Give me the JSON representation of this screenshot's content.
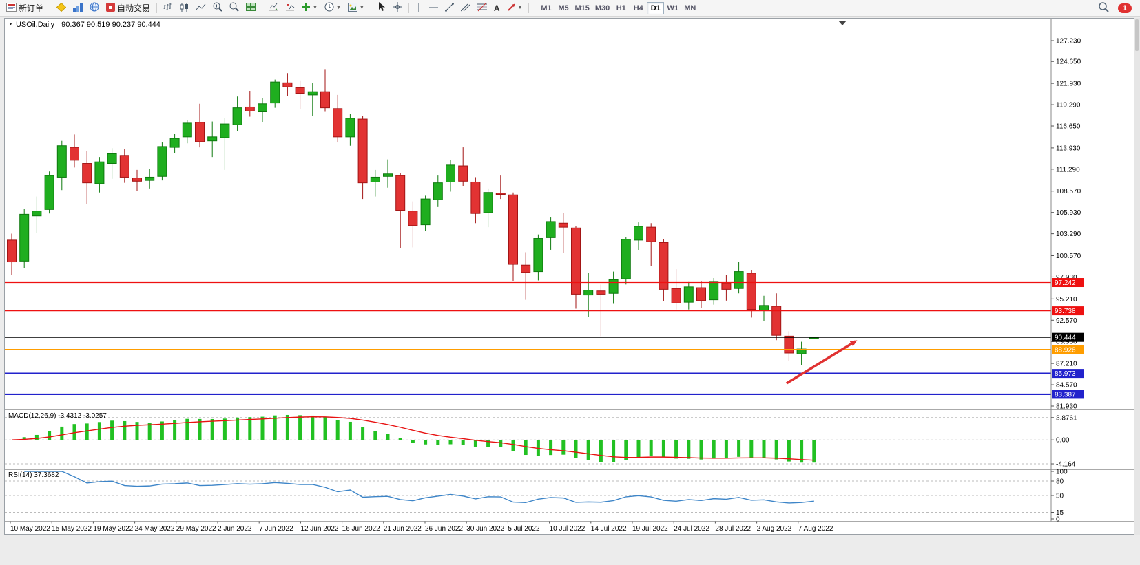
{
  "toolbar": {
    "new_order_label": "新订单",
    "autotrading_label": "自动交易",
    "timeframes": [
      "M1",
      "M5",
      "M15",
      "M30",
      "H1",
      "H4",
      "D1",
      "W1",
      "MN"
    ],
    "active_timeframe": "D1",
    "notification_count": "1",
    "text_tool_label": "A"
  },
  "chart_data": {
    "type": "candlestick",
    "symbol": "USOil",
    "timeframe": "Daily",
    "title": {
      "symbol_period": "USOil,Daily",
      "ohlc": "90.367 90.519 90.237 90.444"
    },
    "quote": {
      "open": 90.367,
      "high": 90.519,
      "low": 90.237,
      "close": 90.444
    },
    "ylim": [
      81.93,
      127.23
    ],
    "y_tick_labels": [
      "127.230",
      "124.650",
      "121.930",
      "119.290",
      "116.650",
      "113.930",
      "111.290",
      "108.570",
      "105.930",
      "103.290",
      "100.570",
      "97.930",
      "95.210",
      "92.570",
      "89.930",
      "87.210",
      "84.570",
      "81.930"
    ],
    "x_tick_labels": [
      "10 May 2022",
      "15 May 2022",
      "19 May 2022",
      "24 May 2022",
      "29 May 2022",
      "2 Jun 2022",
      "7 Jun 2022",
      "12 Jun 2022",
      "16 Jun 2022",
      "21 Jun 2022",
      "26 Jun 2022",
      "30 Jun 2022",
      "5 Jul 2022",
      "10 Jul 2022",
      "14 Jul 2022",
      "19 Jul 2022",
      "24 Jul 2022",
      "28 Jul 2022",
      "2 Aug 2022",
      "7 Aug 2022"
    ],
    "candles": [
      [
        102.5,
        103.3,
        98.2,
        99.8
      ],
      [
        99.9,
        106.4,
        99.0,
        105.7
      ],
      [
        105.5,
        107.9,
        103.4,
        106.1
      ],
      [
        106.3,
        111.0,
        105.8,
        110.5
      ],
      [
        110.3,
        114.8,
        108.7,
        114.2
      ],
      [
        114.0,
        115.6,
        111.5,
        112.4
      ],
      [
        112.0,
        113.5,
        107.0,
        109.6
      ],
      [
        109.5,
        112.8,
        108.4,
        112.2
      ],
      [
        112.0,
        113.9,
        110.1,
        113.2
      ],
      [
        113.0,
        113.8,
        109.6,
        110.3
      ],
      [
        110.2,
        111.2,
        108.6,
        109.8
      ],
      [
        109.9,
        111.3,
        108.9,
        110.3
      ],
      [
        110.4,
        114.6,
        109.9,
        114.1
      ],
      [
        114.0,
        115.7,
        113.3,
        115.1
      ],
      [
        115.3,
        117.4,
        114.5,
        117.0
      ],
      [
        117.1,
        119.4,
        114.0,
        114.7
      ],
      [
        114.8,
        117.2,
        112.8,
        115.3
      ],
      [
        115.2,
        117.6,
        111.2,
        116.9
      ],
      [
        116.8,
        120.3,
        116.0,
        118.9
      ],
      [
        119.0,
        121.0,
        117.8,
        118.5
      ],
      [
        118.4,
        120.1,
        117.1,
        119.4
      ],
      [
        119.5,
        122.4,
        118.9,
        122.1
      ],
      [
        122.0,
        123.2,
        120.4,
        121.5
      ],
      [
        121.4,
        122.3,
        118.7,
        120.7
      ],
      [
        120.5,
        122.0,
        117.9,
        120.9
      ],
      [
        120.9,
        123.7,
        118.4,
        118.9
      ],
      [
        118.8,
        120.5,
        114.6,
        115.3
      ],
      [
        115.3,
        118.1,
        114.2,
        117.6
      ],
      [
        117.5,
        117.9,
        107.6,
        109.6
      ],
      [
        109.7,
        111.2,
        107.9,
        110.3
      ],
      [
        110.4,
        112.5,
        109.0,
        110.7
      ],
      [
        110.5,
        110.8,
        101.5,
        106.2
      ],
      [
        106.1,
        107.3,
        101.6,
        104.3
      ],
      [
        104.4,
        108.0,
        103.6,
        107.6
      ],
      [
        107.5,
        110.5,
        106.6,
        109.6
      ],
      [
        109.7,
        112.4,
        108.5,
        111.8
      ],
      [
        111.7,
        114.0,
        109.2,
        109.8
      ],
      [
        109.7,
        110.3,
        104.6,
        105.8
      ],
      [
        105.9,
        108.9,
        104.1,
        108.4
      ],
      [
        108.3,
        110.5,
        107.6,
        108.2
      ],
      [
        108.1,
        108.4,
        97.4,
        99.5
      ],
      [
        99.4,
        101.0,
        95.1,
        98.5
      ],
      [
        98.6,
        103.2,
        97.5,
        102.7
      ],
      [
        102.8,
        105.3,
        101.3,
        104.8
      ],
      [
        104.6,
        105.9,
        100.9,
        104.1
      ],
      [
        104.0,
        104.2,
        94.0,
        95.8
      ],
      [
        95.7,
        98.4,
        93.0,
        96.3
      ],
      [
        96.2,
        97.0,
        90.6,
        95.8
      ],
      [
        95.9,
        98.6,
        94.6,
        97.6
      ],
      [
        97.7,
        102.9,
        97.0,
        102.6
      ],
      [
        102.5,
        104.7,
        101.3,
        104.2
      ],
      [
        104.1,
        104.6,
        99.3,
        102.3
      ],
      [
        102.2,
        102.6,
        94.9,
        96.4
      ],
      [
        96.5,
        98.9,
        93.9,
        94.7
      ],
      [
        94.8,
        97.3,
        93.9,
        96.7
      ],
      [
        96.6,
        97.4,
        94.1,
        95.0
      ],
      [
        95.1,
        97.8,
        94.5,
        97.3
      ],
      [
        97.2,
        98.2,
        95.0,
        96.4
      ],
      [
        96.5,
        99.8,
        95.9,
        98.6
      ],
      [
        98.4,
        98.8,
        92.9,
        93.9
      ],
      [
        93.8,
        95.6,
        92.5,
        94.4
      ],
      [
        94.3,
        95.9,
        90.1,
        90.7
      ],
      [
        90.6,
        91.2,
        87.5,
        88.5
      ],
      [
        88.4,
        89.9,
        87.0,
        89.0
      ],
      [
        90.367,
        90.519,
        90.237,
        90.444
      ]
    ],
    "horizontal_lines": [
      {
        "label": "97.242",
        "price": 97.242,
        "color": "#ee1111",
        "width": 1.2
      },
      {
        "label": "93.738",
        "price": 93.738,
        "color": "#ee1111",
        "width": 1.2
      },
      {
        "label": "88.928",
        "price": 88.928,
        "color": "#ff9d00",
        "width": 2
      },
      {
        "label": "85.973",
        "price": 85.973,
        "color": "#2222cc",
        "width": 2.2
      },
      {
        "label": "83.387",
        "price": 83.387,
        "color": "#2222cc",
        "width": 2.2
      }
    ],
    "current_price": {
      "label": "90.444",
      "price": 90.444,
      "color": "#000000"
    },
    "annotations": {
      "arrow": {
        "from": {
          "bar": 61.8,
          "price": 84.74
        },
        "to": {
          "bar": 67.3,
          "price": 89.95
        }
      }
    },
    "indicators": {
      "macd": {
        "label": "MACD(12,26,9) -3.4312 -3.0257",
        "params": [
          12,
          26,
          9
        ],
        "values": [
          -3.4312,
          -3.0257
        ],
        "scale_labels": [
          "3.8761",
          "0.00",
          "-4.164"
        ]
      },
      "rsi": {
        "label": "RSI(14) 37.3682",
        "period": 14,
        "value": 37.3682,
        "scale_labels": [
          "100",
          "80",
          "50",
          "15",
          "0"
        ],
        "levels": [
          80,
          50,
          15
        ]
      }
    },
    "colors": {
      "bull": "#1fae1f",
      "bull_dark": "#0e7a0e",
      "bear": "#e23333",
      "bear_dark": "#a31515",
      "macd_bar": "#22c122",
      "macd_signal": "#e81212",
      "rsi_line": "#3d85c8",
      "arrow": "#e03131"
    }
  }
}
